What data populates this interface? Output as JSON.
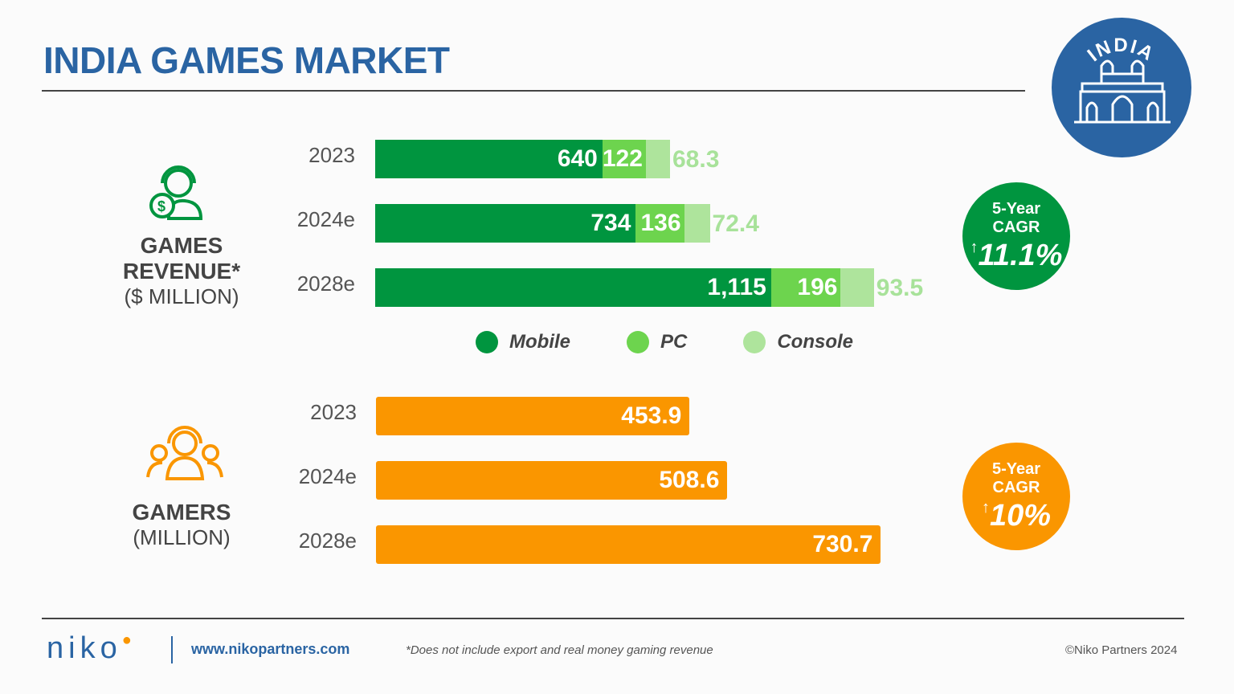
{
  "title": "INDIA GAMES MARKET",
  "badge": {
    "text": "INDIA",
    "icon": "gateway-of-india-icon",
    "color": "#2a64a3"
  },
  "revenue": {
    "label": "GAMES REVENUE*",
    "unit": "($ MILLION)",
    "icon": "gamer-headset-dollar-icon",
    "cagr": {
      "line1": "5-Year",
      "line2": "CAGR",
      "arrow": "↑",
      "value": "11.1%",
      "color": "#00953f"
    }
  },
  "gamers": {
    "label": "GAMERS",
    "unit": "(MILLION)",
    "icon": "gamers-group-icon",
    "cagr": {
      "line1": "5-Year",
      "line2": "CAGR",
      "arrow": "↑",
      "value": "10%",
      "color": "#fa9600"
    }
  },
  "legend": [
    {
      "name": "Mobile",
      "color": "#00953f"
    },
    {
      "name": "PC",
      "color": "#6dd44e"
    },
    {
      "name": "Console",
      "color": "#aee49c"
    }
  ],
  "chart_data": [
    {
      "type": "bar",
      "stacked": true,
      "orientation": "horizontal",
      "categories": [
        "2023",
        "2024e",
        "2028e"
      ],
      "series": [
        {
          "name": "Mobile",
          "values": [
            640,
            734,
            1115
          ],
          "labels": [
            "640",
            "734",
            "1,115"
          ],
          "color": "#00953f"
        },
        {
          "name": "PC",
          "values": [
            122,
            136,
            196
          ],
          "labels": [
            "122",
            "136",
            "196"
          ],
          "color": "#6dd44e"
        },
        {
          "name": "Console",
          "values": [
            68.3,
            72.4,
            93.5
          ],
          "labels": [
            "68.3",
            "72.4",
            "93.5"
          ],
          "color": "#aee49c"
        }
      ],
      "legend": "bottom"
    },
    {
      "type": "bar",
      "orientation": "horizontal",
      "categories": [
        "2023",
        "2024e",
        "2028e"
      ],
      "values": [
        453.9,
        508.6,
        730.7
      ],
      "labels": [
        "453.9",
        "508.6",
        "730.7"
      ],
      "color": "#fa9600"
    }
  ],
  "footer": {
    "logo": "niko",
    "url": "www.nikopartners.com",
    "note": "*Does not include export and real money gaming revenue",
    "copyright": "©Niko Partners 2024"
  }
}
